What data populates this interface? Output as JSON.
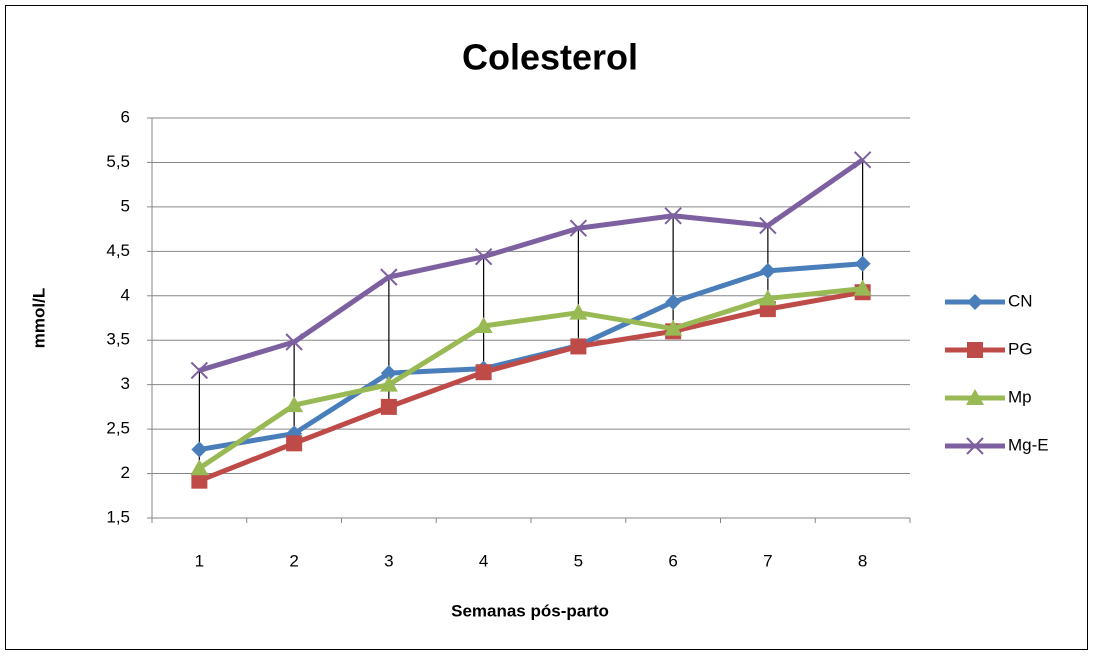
{
  "chart_data": {
    "type": "line",
    "title": "Colesterol",
    "x_label": "Semanas pós-parto",
    "y_label": "mmol/L",
    "categories": [
      "1",
      "2",
      "3",
      "4",
      "5",
      "6",
      "7",
      "8"
    ],
    "series": [
      {
        "name": "CN",
        "color": "#4a7ebb",
        "marker": "diamond",
        "values": [
          2.27,
          2.45,
          3.13,
          3.18,
          3.44,
          3.93,
          4.28,
          4.36
        ]
      },
      {
        "name": "PG",
        "color": "#be4b48",
        "marker": "square",
        "values": [
          1.92,
          2.34,
          2.75,
          3.14,
          3.43,
          3.6,
          3.85,
          4.04
        ]
      },
      {
        "name": "Mp",
        "color": "#98b954",
        "marker": "triangle",
        "values": [
          2.06,
          2.77,
          3.0,
          3.66,
          3.81,
          3.63,
          3.97,
          4.08
        ]
      },
      {
        "name": "Mg-E",
        "color": "#7d60a0",
        "marker": "x",
        "values": [
          3.16,
          3.48,
          4.21,
          4.44,
          4.76,
          4.9,
          4.79,
          5.53
        ]
      }
    ],
    "ylim": [
      1.5,
      6
    ],
    "yticks": [
      {
        "value": 1.5,
        "label": "1,5"
      },
      2,
      {
        "value": 2.5,
        "label": "2,5"
      },
      3,
      {
        "value": 3.5,
        "label": "3,5"
      },
      4,
      {
        "value": 4.5,
        "label": "4,5"
      },
      5,
      {
        "value": 5.5,
        "label": "5,5"
      },
      6
    ],
    "grid": true,
    "high_low_lines": true,
    "legend": "right"
  }
}
